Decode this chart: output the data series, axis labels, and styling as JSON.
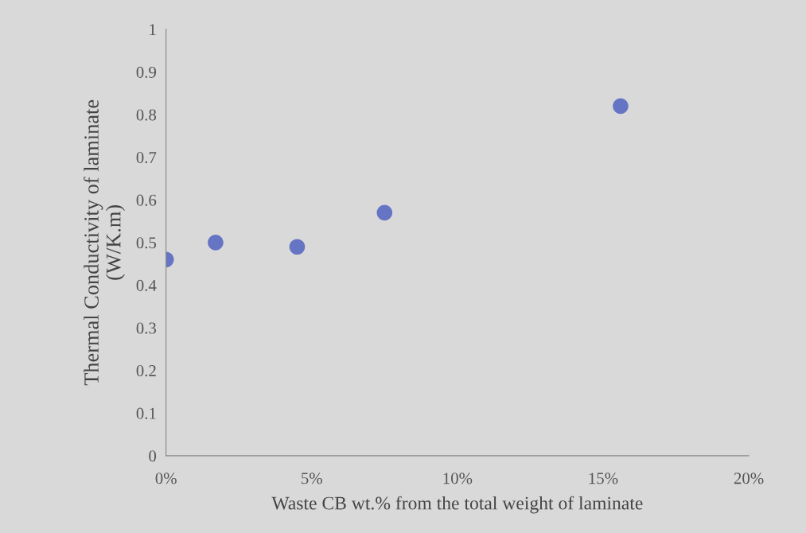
{
  "chart_data": {
    "type": "scatter",
    "xlabel": "Waste CB wt.% from the total weight of laminate",
    "ylabel": "Thermal Conductivity of laminate\n(W/K.m)",
    "x": [
      0,
      1.7,
      4.5,
      7.5,
      15.6
    ],
    "series": [
      {
        "color": "#6674c4",
        "values": [
          0.46,
          0.5,
          0.49,
          0.57,
          0.82
        ]
      }
    ],
    "xlim": [
      0,
      20
    ],
    "xticks": [
      {
        "value": 0,
        "label": "0%"
      },
      {
        "value": 5,
        "label": "5%"
      },
      {
        "value": 10,
        "label": "10%"
      },
      {
        "value": 15,
        "label": "15%"
      },
      {
        "value": 20,
        "label": "20%"
      }
    ],
    "ylim": [
      0,
      1
    ],
    "yticks": [
      0,
      0.1,
      0.2,
      0.3,
      0.4,
      0.5,
      0.6,
      0.7,
      0.8,
      0.9,
      1
    ],
    "marker": "circle",
    "grid": false,
    "legend": false
  }
}
